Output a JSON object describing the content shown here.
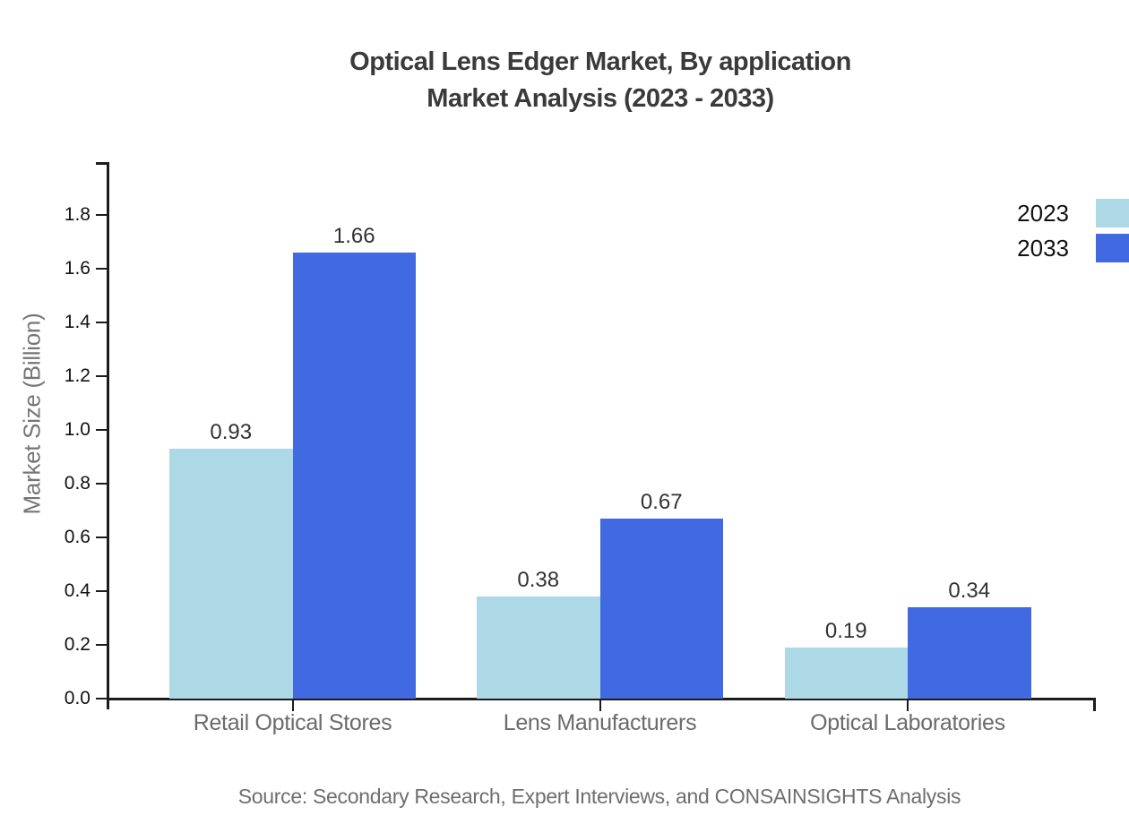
{
  "title": {
    "line1": "Optical Lens Edger Market, By application",
    "line2": "Market Analysis (2023 - 2033)"
  },
  "source": "Source: Secondary Research, Expert Interviews, and CONSAINSIGHTS Analysis",
  "chart_data": {
    "type": "bar",
    "title": "Optical Lens Edger Market, By application Market Analysis (2023 - 2033)",
    "categories": [
      "Retail Optical Stores",
      "Lens Manufacturers",
      "Optical Laboratories"
    ],
    "series": [
      {
        "name": "2023",
        "color": "#ADD8E6",
        "values": [
          0.93,
          0.38,
          0.19
        ]
      },
      {
        "name": "2033",
        "color": "#4169E1",
        "values": [
          1.66,
          0.67,
          0.34
        ]
      }
    ],
    "xlabel": "",
    "ylabel": "Market Size (Billion)",
    "ylim": [
      0.0,
      2.0
    ],
    "yticks": [
      "0.0",
      "0.2",
      "0.4",
      "0.6",
      "0.8",
      "1.0",
      "1.2",
      "1.4",
      "1.6",
      "1.8"
    ],
    "grid": false,
    "legend_position": "top-right",
    "value_label_format": "2-decimals"
  }
}
